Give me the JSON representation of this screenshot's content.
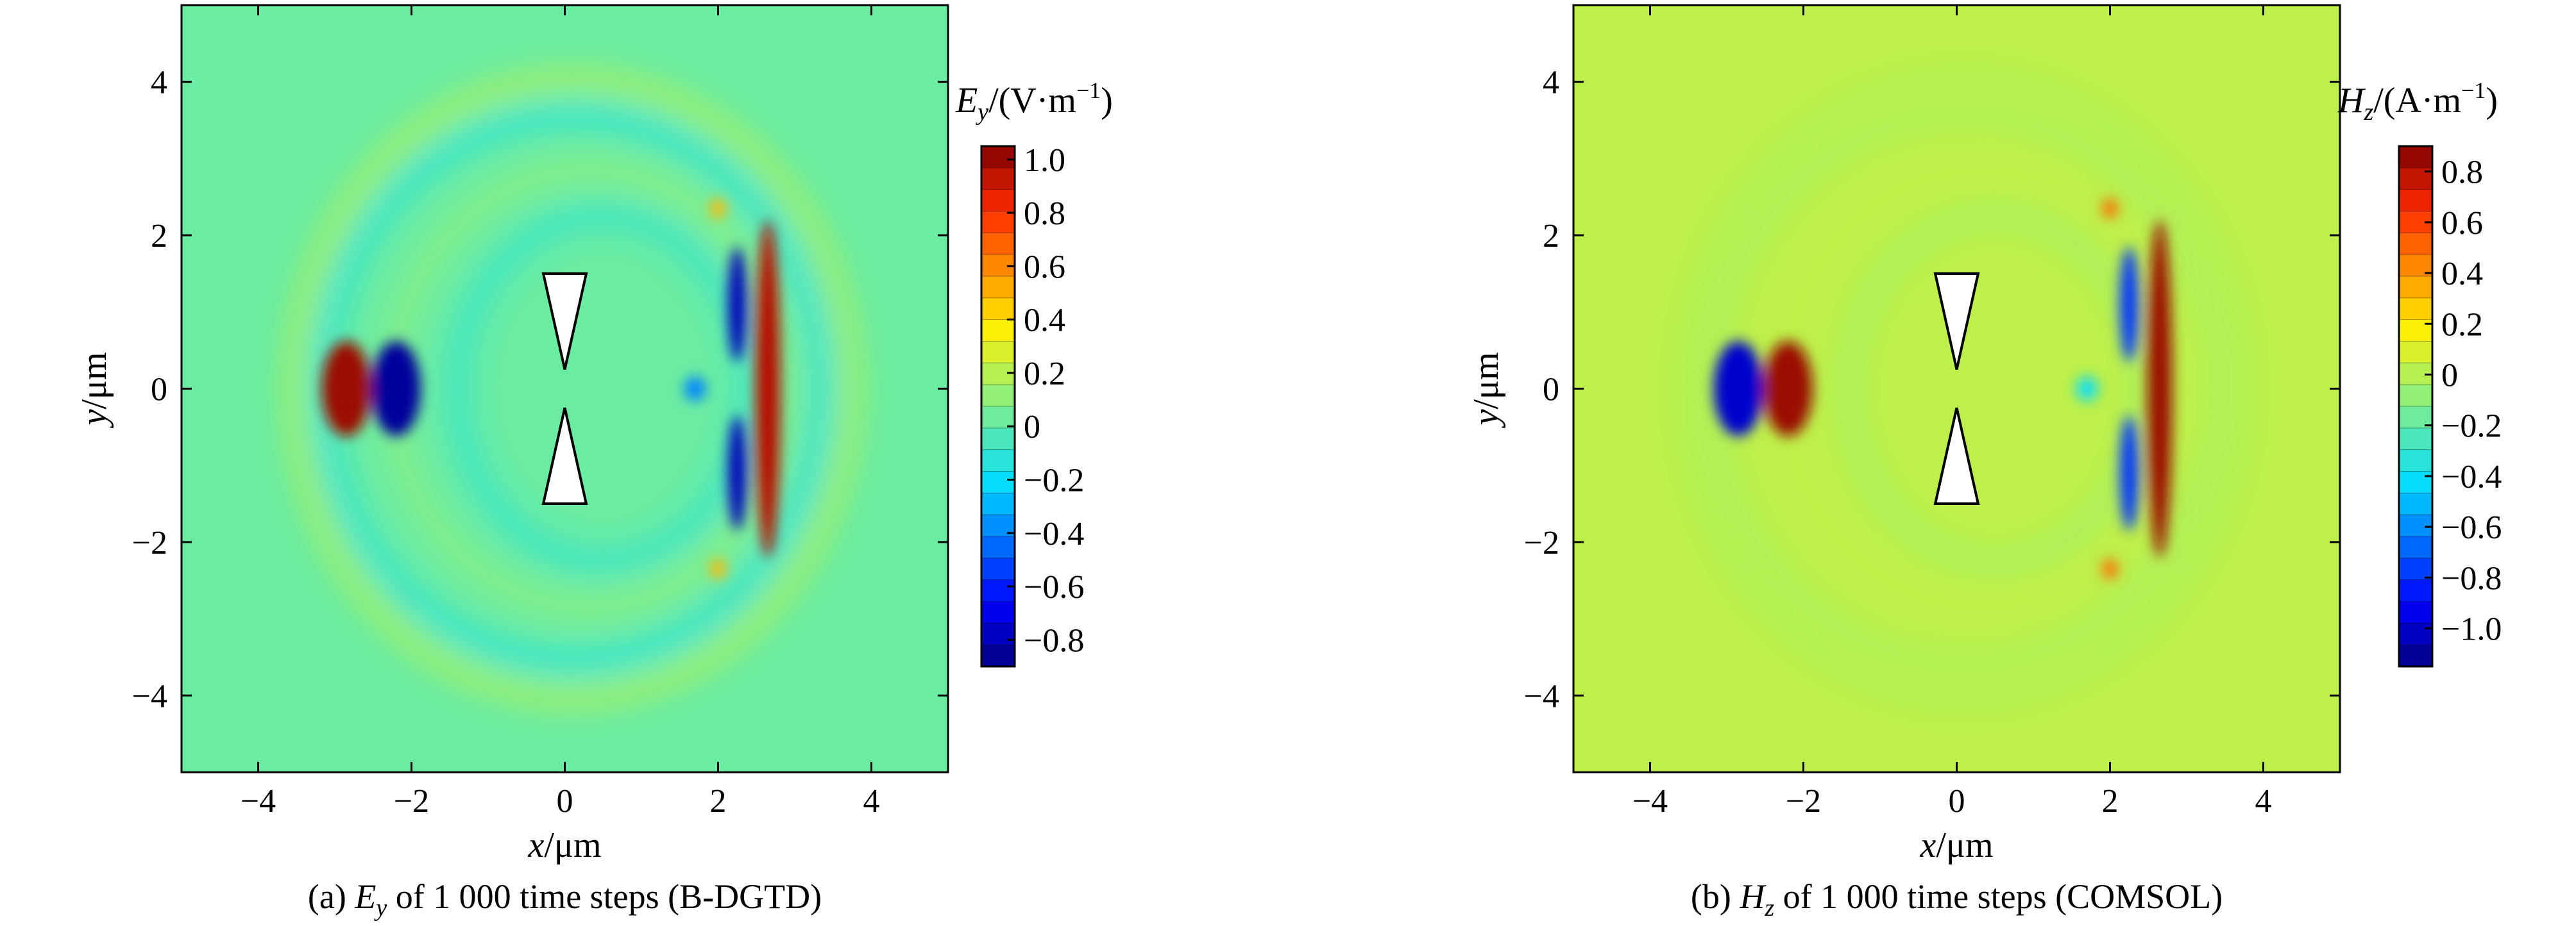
{
  "chart_data": [
    {
      "type": "heatmap",
      "caption": {
        "label": "(a)",
        "symbol": "E",
        "sub": "y",
        "text": " of 1 000 time steps (B-DGTD)"
      },
      "xlabel": {
        "var": "x",
        "unit": "/μm"
      },
      "ylabel": {
        "var": "y",
        "unit": "/μm"
      },
      "xlim": [
        -5,
        5
      ],
      "ylim": [
        -5,
        5
      ],
      "x_ticks": [
        -4,
        -2,
        0,
        2,
        4
      ],
      "y_ticks": [
        -4,
        -2,
        0,
        2,
        4
      ],
      "colorbar": {
        "title": {
          "symbol": "E",
          "sub": "y",
          "unit": "/(V·m",
          "exp": "−1",
          "close": ")"
        },
        "range": [
          -0.9,
          1.05
        ],
        "ticks": [
          1.0,
          0.8,
          0.6,
          0.4,
          0.2,
          0,
          -0.2,
          -0.4,
          -0.6,
          -0.8
        ],
        "tick_labels": [
          "1.0",
          "0.8",
          "0.6",
          "0.4",
          "0.2",
          "0",
          "−0.2",
          "−0.4",
          "−0.6",
          "−0.8"
        ]
      },
      "colormap": "jet",
      "features": {
        "bowtie_antenna": {
          "x_center": 0,
          "half_width": 0.28,
          "y_outer": 1.5,
          "y_inner": 0.25
        },
        "field_blobs": [
          {
            "x": -2.85,
            "y": 0,
            "value": 1.0
          },
          {
            "x": -2.2,
            "y": 0,
            "value": -0.85
          },
          {
            "x": 2.65,
            "y": 0,
            "value": 0.95
          },
          {
            "x": 2.25,
            "y": 1.1,
            "value": -0.8
          },
          {
            "x": 2.25,
            "y": -1.1,
            "value": -0.8
          },
          {
            "x": 1.7,
            "y": 0,
            "value": -0.4
          },
          {
            "x": 2.0,
            "y": 2.35,
            "value": 0.5
          },
          {
            "x": 2.0,
            "y": -2.35,
            "value": 0.5
          }
        ]
      }
    },
    {
      "type": "heatmap",
      "caption": {
        "label": "(b)",
        "symbol": "H",
        "sub": "z",
        "text": " of 1 000 time steps (COMSOL)"
      },
      "xlabel": {
        "var": "x",
        "unit": "/μm"
      },
      "ylabel": {
        "var": "y",
        "unit": "/μm"
      },
      "xlim": [
        -5,
        5
      ],
      "ylim": [
        -5,
        5
      ],
      "x_ticks": [
        -4,
        -2,
        0,
        2,
        4
      ],
      "y_ticks": [
        -4,
        -2,
        0,
        2,
        4
      ],
      "colorbar": {
        "title": {
          "symbol": "H",
          "sub": "z",
          "unit": "/(A·m",
          "exp": "−1",
          "close": ")"
        },
        "range": [
          -1.15,
          0.9
        ],
        "ticks": [
          0.8,
          0.6,
          0.4,
          0.2,
          0,
          -0.2,
          -0.4,
          -0.6,
          -0.8,
          -1.0
        ],
        "tick_labels": [
          "0.8",
          "0.6",
          "0.4",
          "0.2",
          "0",
          "−0.2",
          "−0.4",
          "−0.6",
          "−0.8",
          "−1.0"
        ]
      },
      "colormap": "jet",
      "features": {
        "bowtie_antenna": {
          "x_center": 0,
          "half_width": 0.28,
          "y_outer": 1.5,
          "y_inner": 0.25
        },
        "field_blobs": [
          {
            "x": -2.85,
            "y": 0,
            "value": -1.0
          },
          {
            "x": -2.2,
            "y": 0,
            "value": 0.85
          },
          {
            "x": 2.65,
            "y": 0,
            "value": 0.85
          },
          {
            "x": 2.25,
            "y": 1.1,
            "value": -0.8
          },
          {
            "x": 2.25,
            "y": -1.1,
            "value": -0.8
          },
          {
            "x": 1.7,
            "y": 0,
            "value": -0.4
          },
          {
            "x": 2.0,
            "y": 2.35,
            "value": 0.5
          },
          {
            "x": 2.0,
            "y": -2.35,
            "value": 0.5
          }
        ]
      }
    }
  ]
}
